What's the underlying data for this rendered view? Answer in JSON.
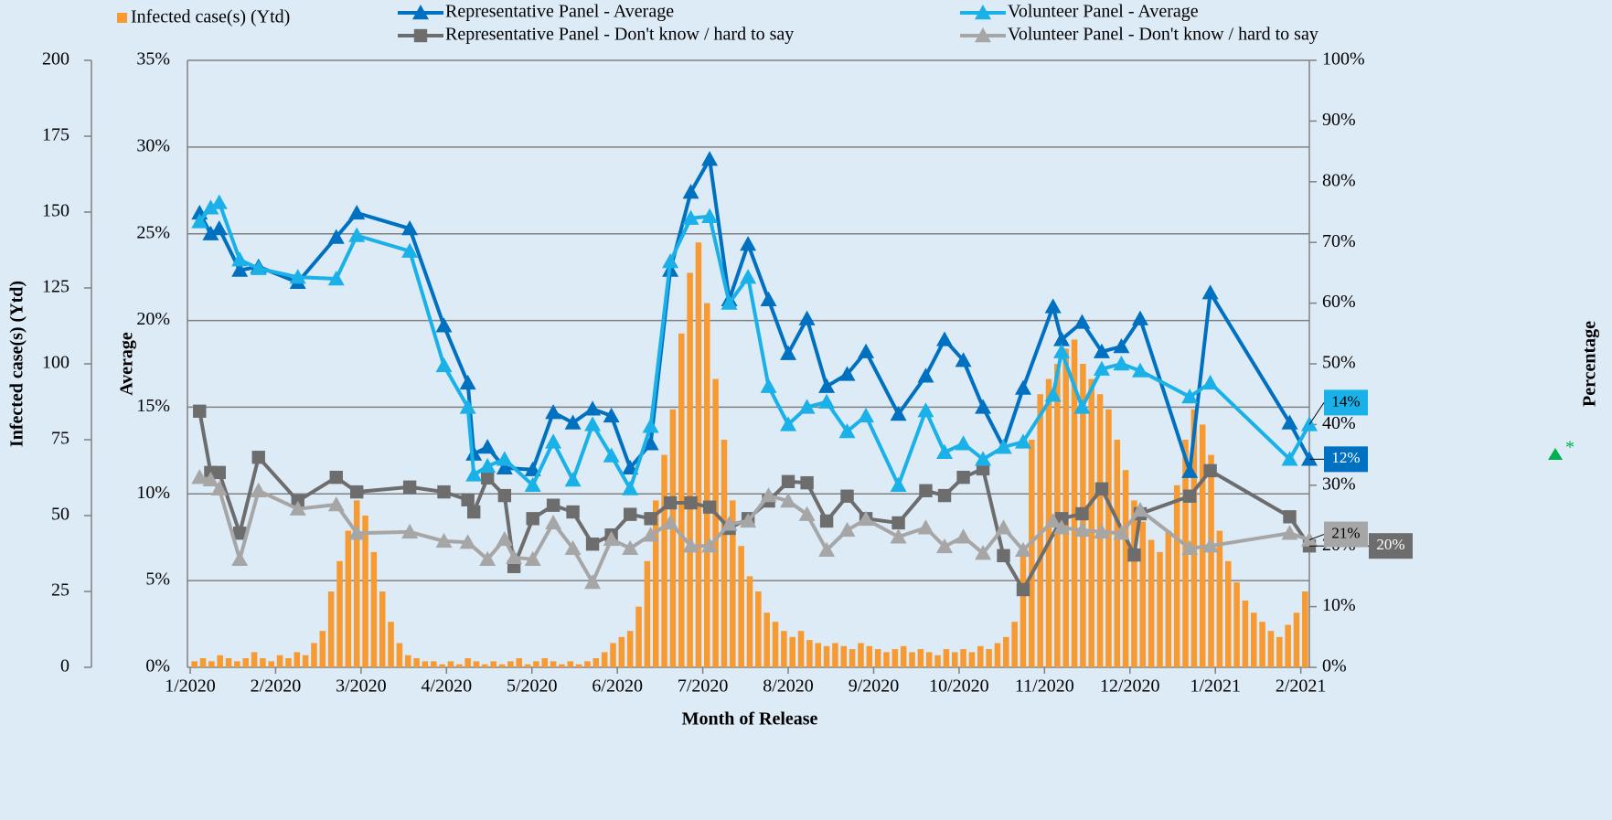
{
  "chart_data": {
    "type": "combo",
    "xlabel": "Month of Release",
    "ylabel": "Average",
    "y2label": "Percentage",
    "y3label": "Infected case(s) (Ytd)",
    "annotation": "*",
    "xlim": [
      0,
      13.1
    ],
    "xticks": [
      {
        "value": 0,
        "label": "1/2020"
      },
      {
        "value": 1,
        "label": "2/2020"
      },
      {
        "value": 2,
        "label": "3/2020"
      },
      {
        "value": 3,
        "label": "4/2020"
      },
      {
        "value": 4,
        "label": "5/2020"
      },
      {
        "value": 5,
        "label": "6/2020"
      },
      {
        "value": 6,
        "label": "7/2020"
      },
      {
        "value": 7,
        "label": "8/2020"
      },
      {
        "value": 8,
        "label": "9/2020"
      },
      {
        "value": 9,
        "label": "10/2020"
      },
      {
        "value": 10,
        "label": "11/2020"
      },
      {
        "value": 11,
        "label": "12/2020"
      },
      {
        "value": 12,
        "label": "1/2021"
      },
      {
        "value": 13,
        "label": "2/2021"
      }
    ],
    "ylim": [
      0,
      35
    ],
    "yticks": [
      {
        "value": 0,
        "label": "0%"
      },
      {
        "value": 5,
        "label": "5%"
      },
      {
        "value": 10,
        "label": "10%"
      },
      {
        "value": 15,
        "label": "15%"
      },
      {
        "value": 20,
        "label": "20%"
      },
      {
        "value": 25,
        "label": "25%"
      },
      {
        "value": 30,
        "label": "30%"
      },
      {
        "value": 35,
        "label": "35%"
      }
    ],
    "y2lim": [
      0,
      100
    ],
    "y2ticks": [
      {
        "value": 0,
        "label": "0%"
      },
      {
        "value": 10,
        "label": "10%"
      },
      {
        "value": 20,
        "label": "20%"
      },
      {
        "value": 30,
        "label": "30%"
      },
      {
        "value": 40,
        "label": "40%"
      },
      {
        "value": 50,
        "label": "50%"
      },
      {
        "value": 60,
        "label": "60%"
      },
      {
        "value": 70,
        "label": "70%"
      },
      {
        "value": 80,
        "label": "80%"
      },
      {
        "value": 90,
        "label": "90%"
      },
      {
        "value": 100,
        "label": "100%"
      }
    ],
    "y3lim": [
      0,
      200
    ],
    "y3ticks": [
      0,
      25,
      50,
      75,
      100,
      125,
      150,
      175,
      200
    ],
    "grid": true,
    "series": [
      {
        "name": "Infected case(s) (Ytd)",
        "type": "bar",
        "axis": "y3",
        "color": "#f79a32",
        "x": [
          0.05,
          0.15,
          0.25,
          0.35,
          0.45,
          0.55,
          0.65,
          0.75,
          0.85,
          0.95,
          1.05,
          1.15,
          1.25,
          1.35,
          1.45,
          1.55,
          1.65,
          1.75,
          1.85,
          1.95,
          2.05,
          2.15,
          2.25,
          2.35,
          2.45,
          2.55,
          2.65,
          2.75,
          2.85,
          2.95,
          3.05,
          3.15,
          3.25,
          3.35,
          3.45,
          3.55,
          3.65,
          3.75,
          3.85,
          3.95,
          4.05,
          4.15,
          4.25,
          4.35,
          4.45,
          4.55,
          4.65,
          4.75,
          4.85,
          4.95,
          5.05,
          5.15,
          5.25,
          5.35,
          5.45,
          5.55,
          5.65,
          5.75,
          5.85,
          5.95,
          6.05,
          6.15,
          6.25,
          6.35,
          6.45,
          6.55,
          6.65,
          6.75,
          6.85,
          6.95,
          7.05,
          7.15,
          7.25,
          7.35,
          7.45,
          7.55,
          7.65,
          7.75,
          7.85,
          7.95,
          8.05,
          8.15,
          8.25,
          8.35,
          8.45,
          8.55,
          8.65,
          8.75,
          8.85,
          8.95,
          9.05,
          9.15,
          9.25,
          9.35,
          9.45,
          9.55,
          9.65,
          9.75,
          9.85,
          9.95,
          10.05,
          10.15,
          10.25,
          10.35,
          10.45,
          10.55,
          10.65,
          10.75,
          10.85,
          10.95,
          11.05,
          11.15,
          11.25,
          11.35,
          11.45,
          11.55,
          11.65,
          11.75,
          11.85,
          11.95,
          12.05,
          12.15,
          12.25,
          12.35,
          12.45,
          12.55,
          12.65,
          12.75,
          12.85,
          12.95,
          13.05
        ],
        "values": [
          2,
          3,
          2,
          4,
          3,
          2,
          3,
          5,
          3,
          2,
          4,
          3,
          5,
          4,
          8,
          12,
          25,
          35,
          45,
          55,
          50,
          38,
          25,
          15,
          8,
          4,
          3,
          2,
          2,
          1,
          2,
          1,
          3,
          2,
          1,
          2,
          1,
          2,
          3,
          1,
          2,
          3,
          2,
          1,
          2,
          1,
          2,
          3,
          5,
          8,
          10,
          12,
          20,
          35,
          55,
          70,
          85,
          110,
          130,
          140,
          120,
          95,
          75,
          55,
          40,
          30,
          25,
          18,
          15,
          12,
          10,
          12,
          9,
          8,
          7,
          8,
          7,
          6,
          8,
          7,
          6,
          5,
          6,
          7,
          5,
          6,
          5,
          4,
          6,
          5,
          6,
          5,
          7,
          6,
          8,
          10,
          15,
          40,
          75,
          90,
          95,
          100,
          105,
          108,
          100,
          95,
          90,
          85,
          75,
          65,
          55,
          48,
          42,
          38,
          45,
          60,
          75,
          85,
          80,
          70,
          45,
          35,
          28,
          22,
          18,
          15,
          12,
          10,
          14,
          18,
          25
        ]
      },
      {
        "name": "Representative Panel - Average",
        "type": "line",
        "axis": "y",
        "marker": "triangle",
        "color": "#0070c0",
        "x": [
          0.11,
          0.24,
          0.34,
          0.58,
          0.8,
          1.26,
          1.71,
          1.95,
          2.57,
          2.97,
          3.25,
          3.32,
          3.48,
          3.68,
          4.01,
          4.25,
          4.48,
          4.71,
          4.93,
          5.15,
          5.39,
          5.62,
          5.86,
          6.08,
          6.31,
          6.53,
          6.77,
          7.0,
          7.22,
          7.45,
          7.69,
          7.91,
          8.29,
          8.61,
          8.83,
          9.05,
          9.28,
          9.52,
          9.75,
          10.1,
          10.2,
          10.44,
          10.67,
          10.9,
          11.12,
          11.7,
          11.94,
          12.87,
          13.1
        ],
        "values": [
          26.2,
          25.0,
          25.3,
          22.9,
          23.1,
          22.2,
          24.8,
          26.2,
          25.3,
          19.7,
          16.4,
          12.3,
          12.7,
          11.5,
          11.4,
          14.7,
          14.1,
          14.9,
          14.5,
          11.5,
          12.9,
          22.9,
          27.4,
          29.3,
          21.2,
          24.4,
          21.2,
          18.1,
          20.1,
          16.2,
          16.9,
          18.2,
          14.6,
          16.8,
          18.9,
          17.7,
          15.0,
          12.7,
          16.1,
          20.8,
          18.9,
          19.9,
          18.2,
          18.5,
          20.1,
          11.3,
          21.6,
          14.1,
          12
        ],
        "value_labels": [
          null,
          null,
          null,
          null,
          null,
          null,
          null,
          null,
          null,
          null,
          null,
          null,
          null,
          null,
          null,
          null,
          null,
          null,
          null,
          null,
          null,
          null,
          null,
          null,
          null,
          null,
          null,
          null,
          null,
          null,
          null,
          null,
          null,
          null,
          null,
          null,
          null,
          null,
          null,
          null,
          null,
          null,
          null,
          null,
          null,
          null,
          null,
          null,
          "12%"
        ]
      },
      {
        "name": "Representative Panel - Don't know / hard to say",
        "type": "line",
        "axis": "y2",
        "marker": "square",
        "color": "#6d6d6d",
        "x": [
          0.11,
          0.24,
          0.34,
          0.58,
          0.8,
          1.26,
          1.71,
          1.95,
          2.57,
          2.97,
          3.25,
          3.32,
          3.48,
          3.68,
          3.79,
          4.01,
          4.25,
          4.48,
          4.71,
          4.93,
          5.15,
          5.39,
          5.62,
          5.86,
          6.08,
          6.31,
          6.53,
          6.77,
          7.0,
          7.22,
          7.45,
          7.69,
          7.91,
          8.29,
          8.61,
          8.83,
          9.05,
          9.28,
          9.52,
          9.75,
          10.2,
          10.44,
          10.67,
          11.05,
          11.12,
          11.7,
          11.94,
          12.87,
          13.1
        ],
        "values": [
          42.2,
          32.1,
          32.1,
          22.1,
          34.6,
          27.4,
          31.3,
          28.9,
          29.7,
          28.9,
          27.6,
          25.6,
          31.2,
          28.3,
          16.6,
          24.5,
          26.7,
          25.6,
          20.3,
          21.8,
          25.2,
          24.5,
          27.1,
          27.1,
          26.4,
          22.9,
          24.5,
          27.4,
          30.6,
          30.4,
          24.1,
          28.2,
          24.5,
          23.8,
          29.1,
          28.3,
          31.3,
          32.7,
          18.4,
          12.8,
          24.5,
          25.3,
          29.4,
          18.5,
          25.3,
          28.2,
          32.4,
          24.8,
          20
        ],
        "value_labels": [
          null,
          null,
          null,
          null,
          null,
          null,
          null,
          null,
          null,
          null,
          null,
          null,
          null,
          null,
          null,
          null,
          null,
          null,
          null,
          null,
          null,
          null,
          null,
          null,
          null,
          null,
          null,
          null,
          null,
          null,
          null,
          null,
          null,
          null,
          null,
          null,
          null,
          null,
          null,
          null,
          null,
          null,
          null,
          null,
          null,
          null,
          null,
          null,
          "20%"
        ]
      },
      {
        "name": "Volunteer Panel - Average",
        "type": "line",
        "axis": "y",
        "marker": "triangle",
        "color": "#1ab0e8",
        "x": [
          0.11,
          0.24,
          0.34,
          0.58,
          0.8,
          1.26,
          1.71,
          1.95,
          2.57,
          2.97,
          3.25,
          3.32,
          3.48,
          3.68,
          4.01,
          4.25,
          4.48,
          4.71,
          4.93,
          5.15,
          5.39,
          5.62,
          5.86,
          6.08,
          6.31,
          6.53,
          6.77,
          7.0,
          7.22,
          7.45,
          7.69,
          7.91,
          8.29,
          8.61,
          8.83,
          9.05,
          9.28,
          9.52,
          9.75,
          10.1,
          10.2,
          10.44,
          10.67,
          10.9,
          11.12,
          11.7,
          11.94,
          12.87,
          13.1
        ],
        "values": [
          25.7,
          26.5,
          26.8,
          23.5,
          23.0,
          22.5,
          22.4,
          24.9,
          24.0,
          17.4,
          15.0,
          11.1,
          11.6,
          12.0,
          10.5,
          13.0,
          10.8,
          14.0,
          12.2,
          10.3,
          13.9,
          23.4,
          25.9,
          26.0,
          21.0,
          22.5,
          16.2,
          14.0,
          15.0,
          15.3,
          13.6,
          14.5,
          10.5,
          14.8,
          12.4,
          12.9,
          12.0,
          12.7,
          13.0,
          15.7,
          18.2,
          15.0,
          17.2,
          17.5,
          17.1,
          15.6,
          16.4,
          12.0,
          14
        ],
        "value_labels": [
          null,
          null,
          null,
          null,
          null,
          null,
          null,
          null,
          null,
          null,
          null,
          null,
          null,
          null,
          null,
          null,
          null,
          null,
          null,
          null,
          null,
          null,
          null,
          null,
          null,
          null,
          null,
          null,
          null,
          null,
          null,
          null,
          null,
          null,
          null,
          null,
          null,
          null,
          null,
          null,
          null,
          null,
          null,
          null,
          null,
          null,
          null,
          null,
          "14%"
        ]
      },
      {
        "name": "Volunteer Panel - Don't know / hard to say",
        "type": "line",
        "axis": "y2",
        "marker": "triangle",
        "color": "#a6a6a6",
        "x": [
          0.11,
          0.24,
          0.34,
          0.58,
          0.8,
          1.26,
          1.71,
          1.95,
          2.57,
          2.97,
          3.25,
          3.48,
          3.68,
          3.79,
          4.01,
          4.25,
          4.48,
          4.71,
          4.93,
          5.15,
          5.39,
          5.62,
          5.86,
          6.08,
          6.31,
          6.53,
          6.77,
          7.0,
          7.22,
          7.45,
          7.69,
          7.91,
          8.29,
          8.61,
          8.83,
          9.05,
          9.28,
          9.52,
          9.75,
          10.1,
          10.2,
          10.44,
          10.67,
          10.9,
          11.12,
          11.7,
          11.94,
          12.87,
          13.1
        ],
        "values": [
          31.3,
          30.9,
          29.4,
          17.8,
          29.1,
          26.1,
          26.8,
          22.1,
          22.3,
          20.8,
          20.6,
          17.8,
          21.1,
          18.1,
          17.8,
          23.8,
          19.6,
          14.0,
          21.1,
          19.6,
          21.8,
          23.8,
          20.0,
          20.0,
          23.6,
          24.1,
          28.3,
          27.4,
          25.2,
          19.3,
          22.6,
          24.4,
          21.5,
          23.0,
          19.9,
          21.5,
          18.8,
          23.0,
          19.3,
          24.1,
          23.0,
          22.6,
          22.3,
          22.1,
          25.9,
          19.6,
          20.0,
          22.1,
          21
        ],
        "value_labels": [
          null,
          null,
          null,
          null,
          null,
          null,
          null,
          null,
          null,
          null,
          null,
          null,
          null,
          null,
          null,
          null,
          null,
          null,
          null,
          null,
          null,
          null,
          null,
          null,
          null,
          null,
          null,
          null,
          null,
          null,
          null,
          null,
          null,
          null,
          null,
          null,
          null,
          null,
          null,
          null,
          null,
          null,
          null,
          null,
          null,
          null,
          null,
          null,
          "21%"
        ]
      }
    ]
  }
}
